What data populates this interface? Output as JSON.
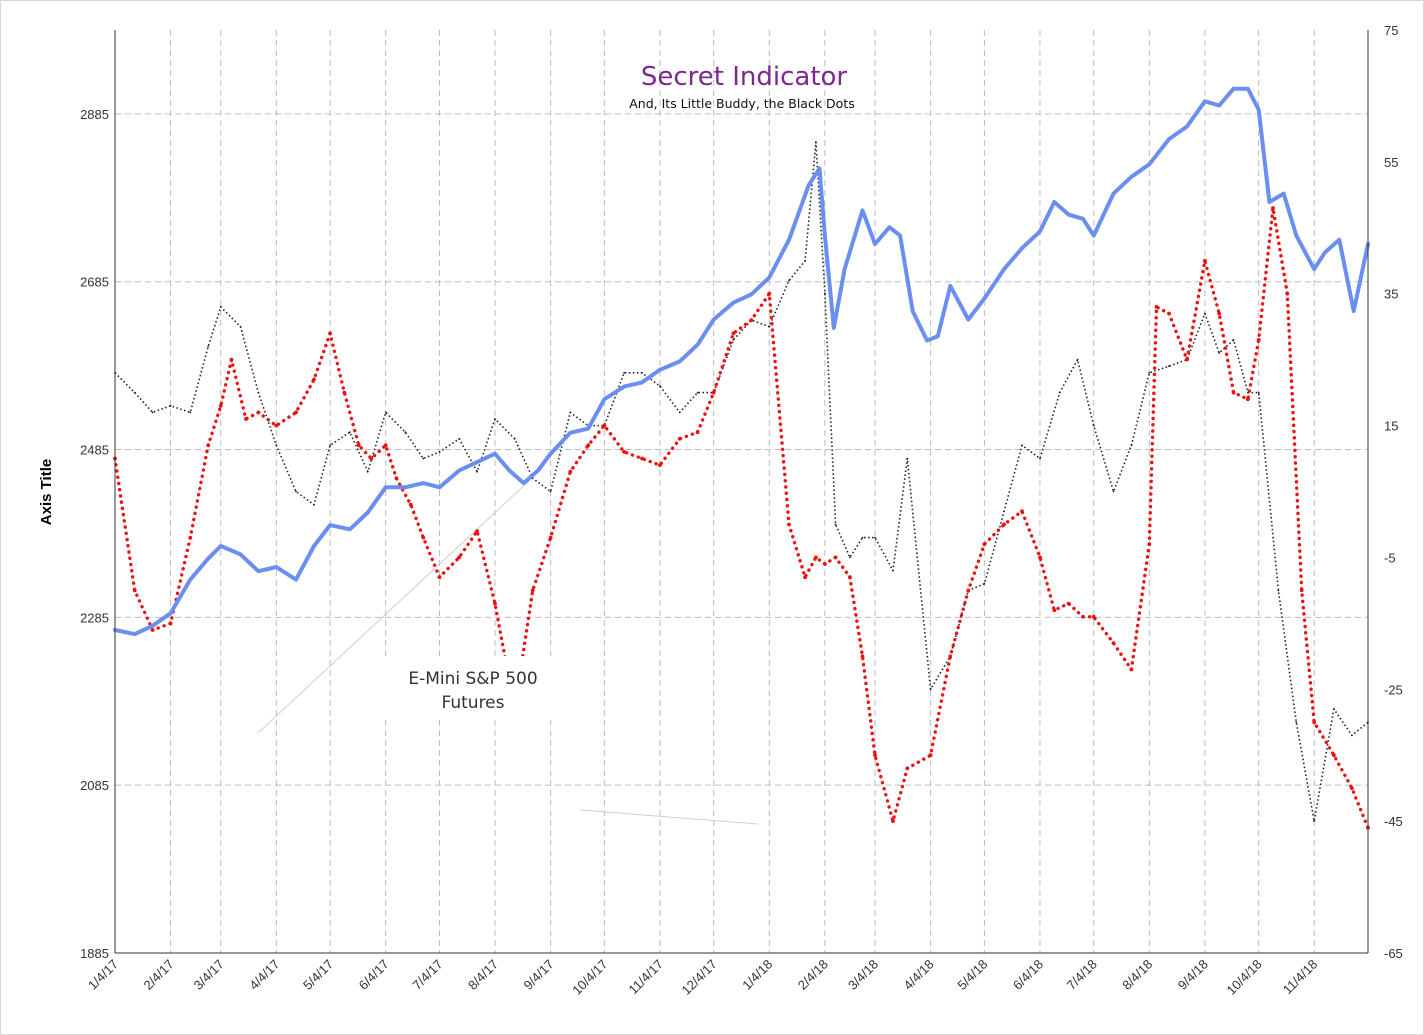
{
  "chart_data": {
    "type": "line",
    "title": "Secret Indicator",
    "subtitle": "And, Its Little Buddy, the Black Dots",
    "ylabel": "Axis Title",
    "annotation": "E-Mini S&P 500 Futures",
    "annotation_lines": [
      "E-Mini S&P 500",
      "Futures"
    ],
    "grid": true,
    "x_range": [
      "2017-01-04",
      "2018-12-04"
    ],
    "x_tick_labels": [
      "1/4/17",
      "2/4/17",
      "3/4/17",
      "4/4/17",
      "5/4/17",
      "6/4/17",
      "7/4/17",
      "8/4/17",
      "9/4/17",
      "10/4/17",
      "11/4/17",
      "12/4/17",
      "1/4/18",
      "2/4/18",
      "3/4/18",
      "4/4/18",
      "5/4/18",
      "6/4/18",
      "7/4/18",
      "8/4/18",
      "9/4/18",
      "10/4/18",
      "11/4/18"
    ],
    "y_left": {
      "ylim": [
        1885,
        2985
      ],
      "ticks": [
        "2885",
        "2685",
        "2485",
        "2285",
        "2085",
        "1885"
      ]
    },
    "y_right": {
      "ylim": [
        -65,
        75
      ],
      "ticks": [
        "75",
        "55",
        "35",
        "15",
        "-5",
        "-25",
        "-45",
        "-65"
      ]
    },
    "colors": {
      "blue": "#6a8ff0",
      "red": "#ee1111",
      "black": "#222222",
      "grid": "#bdbdbd"
    },
    "series": [
      {
        "style": "blue-thick-line",
        "axis": "left",
        "x": [
          "2017-01-04",
          "2017-01-15",
          "2017-01-25",
          "2017-02-04",
          "2017-02-15",
          "2017-02-25",
          "2017-03-04",
          "2017-03-15",
          "2017-03-25",
          "2017-04-04",
          "2017-04-15",
          "2017-04-25",
          "2017-05-04",
          "2017-05-15",
          "2017-05-25",
          "2017-06-04",
          "2017-06-15",
          "2017-06-25",
          "2017-07-04",
          "2017-07-15",
          "2017-07-25",
          "2017-08-04",
          "2017-08-12",
          "2017-08-20",
          "2017-08-28",
          "2017-09-04",
          "2017-09-15",
          "2017-09-25",
          "2017-10-04",
          "2017-10-15",
          "2017-10-25",
          "2017-11-04",
          "2017-11-15",
          "2017-11-25",
          "2017-12-04",
          "2017-12-15",
          "2017-12-25",
          "2018-01-04",
          "2018-01-15",
          "2018-01-26",
          "2018-02-01",
          "2018-02-04",
          "2018-02-09",
          "2018-02-15",
          "2018-02-25",
          "2018-03-04",
          "2018-03-12",
          "2018-03-18",
          "2018-03-25",
          "2018-04-02",
          "2018-04-08",
          "2018-04-15",
          "2018-04-25",
          "2018-05-04",
          "2018-05-15",
          "2018-05-25",
          "2018-06-04",
          "2018-06-12",
          "2018-06-20",
          "2018-06-28",
          "2018-07-04",
          "2018-07-15",
          "2018-07-25",
          "2018-08-04",
          "2018-08-15",
          "2018-08-25",
          "2018-09-04",
          "2018-09-12",
          "2018-09-20",
          "2018-09-28",
          "2018-10-04",
          "2018-10-10",
          "2018-10-18",
          "2018-10-25",
          "2018-11-04",
          "2018-11-10",
          "2018-11-18",
          "2018-11-26",
          "2018-12-04"
        ],
        "y": [
          2270,
          2265,
          2275,
          2290,
          2330,
          2355,
          2370,
          2360,
          2340,
          2345,
          2330,
          2370,
          2395,
          2390,
          2410,
          2440,
          2440,
          2445,
          2440,
          2460,
          2470,
          2480,
          2460,
          2445,
          2460,
          2480,
          2505,
          2510,
          2545,
          2560,
          2565,
          2580,
          2590,
          2610,
          2640,
          2660,
          2670,
          2690,
          2735,
          2800,
          2820,
          2740,
          2630,
          2700,
          2770,
          2730,
          2750,
          2740,
          2650,
          2615,
          2620,
          2680,
          2640,
          2665,
          2700,
          2725,
          2745,
          2780,
          2765,
          2760,
          2740,
          2790,
          2810,
          2825,
          2855,
          2870,
          2900,
          2895,
          2915,
          2915,
          2890,
          2780,
          2790,
          2740,
          2700,
          2720,
          2735,
          2650,
          2730
        ]
      },
      {
        "style": "red-dots",
        "axis": "right",
        "x": [
          "2017-01-04",
          "2017-01-15",
          "2017-01-25",
          "2017-02-04",
          "2017-02-15",
          "2017-02-25",
          "2017-03-04",
          "2017-03-10",
          "2017-03-18",
          "2017-03-25",
          "2017-04-04",
          "2017-04-15",
          "2017-04-25",
          "2017-05-04",
          "2017-05-12",
          "2017-05-20",
          "2017-05-27",
          "2017-06-04",
          "2017-06-10",
          "2017-06-18",
          "2017-06-25",
          "2017-07-04",
          "2017-07-15",
          "2017-07-25",
          "2017-08-04",
          "2017-08-15",
          "2017-08-25",
          "2017-09-04",
          "2017-09-15",
          "2017-09-25",
          "2017-10-04",
          "2017-10-15",
          "2017-10-25",
          "2017-11-04",
          "2017-11-15",
          "2017-11-25",
          "2017-12-04",
          "2017-12-15",
          "2017-12-25",
          "2018-01-04",
          "2018-01-15",
          "2018-01-24",
          "2018-01-30",
          "2018-02-04",
          "2018-02-10",
          "2018-02-18",
          "2018-02-25",
          "2018-03-04",
          "2018-03-14",
          "2018-03-22",
          "2018-04-04",
          "2018-04-15",
          "2018-04-25",
          "2018-05-04",
          "2018-05-15",
          "2018-05-25",
          "2018-06-04",
          "2018-06-12",
          "2018-06-20",
          "2018-06-28",
          "2018-07-04",
          "2018-07-15",
          "2018-07-25",
          "2018-08-04",
          "2018-08-08",
          "2018-08-15",
          "2018-08-25",
          "2018-09-04",
          "2018-09-12",
          "2018-09-20",
          "2018-09-28",
          "2018-10-04",
          "2018-10-12",
          "2018-10-20",
          "2018-10-28",
          "2018-11-04",
          "2018-11-15",
          "2018-11-25",
          "2018-12-04"
        ],
        "y": [
          10,
          -10,
          -16,
          -15,
          -2,
          12,
          18,
          25,
          16,
          17,
          15,
          17,
          22,
          29,
          20,
          12,
          10,
          12,
          7,
          3,
          -2,
          -8,
          -5,
          -1,
          -12,
          -28,
          -10,
          -2,
          8,
          12,
          15,
          11,
          10,
          9,
          13,
          14,
          20,
          29,
          31,
          35,
          0,
          -8,
          -5,
          -6,
          -5,
          -8,
          -20,
          -35,
          -45,
          -37,
          -35,
          -20,
          -10,
          -3,
          0,
          2,
          -5,
          -13,
          -12,
          -14,
          -14,
          -18,
          -22,
          -3,
          33,
          32,
          25,
          40,
          32,
          20,
          19,
          28,
          48,
          35,
          -10,
          -30,
          -35,
          -40,
          -46
        ]
      },
      {
        "style": "black-dotted-line",
        "axis": "right",
        "x": [
          "2017-01-04",
          "2017-01-15",
          "2017-01-25",
          "2017-02-04",
          "2017-02-15",
          "2017-02-25",
          "2017-03-04",
          "2017-03-15",
          "2017-03-25",
          "2017-04-04",
          "2017-04-15",
          "2017-04-25",
          "2017-05-04",
          "2017-05-15",
          "2017-05-25",
          "2017-06-04",
          "2017-06-15",
          "2017-06-25",
          "2017-07-04",
          "2017-07-15",
          "2017-07-25",
          "2017-08-04",
          "2017-08-15",
          "2017-08-25",
          "2017-09-04",
          "2017-09-15",
          "2017-09-25",
          "2017-10-04",
          "2017-10-15",
          "2017-10-25",
          "2017-11-04",
          "2017-11-15",
          "2017-11-25",
          "2017-12-04",
          "2017-12-15",
          "2017-12-25",
          "2018-01-04",
          "2018-01-15",
          "2018-01-24",
          "2018-01-30",
          "2018-02-04",
          "2018-02-10",
          "2018-02-18",
          "2018-02-25",
          "2018-03-04",
          "2018-03-14",
          "2018-03-22",
          "2018-04-04",
          "2018-04-15",
          "2018-04-25",
          "2018-05-04",
          "2018-05-15",
          "2018-05-25",
          "2018-06-04",
          "2018-06-15",
          "2018-06-25",
          "2018-07-04",
          "2018-07-15",
          "2018-07-25",
          "2018-08-04",
          "2018-08-15",
          "2018-08-25",
          "2018-09-04",
          "2018-09-12",
          "2018-09-20",
          "2018-09-28",
          "2018-10-04",
          "2018-10-15",
          "2018-10-25",
          "2018-11-04",
          "2018-11-15",
          "2018-11-25",
          "2018-12-04"
        ],
        "y": [
          23,
          20,
          17,
          18,
          17,
          27,
          33,
          30,
          20,
          12,
          5,
          3,
          12,
          14,
          8,
          17,
          14,
          10,
          11,
          13,
          8,
          16,
          13,
          7,
          5,
          17,
          15,
          15,
          23,
          23,
          21,
          17,
          20,
          20,
          28,
          31,
          30,
          37,
          40,
          58,
          35,
          0,
          -5,
          -2,
          -2,
          -7,
          10,
          -25,
          -20,
          -10,
          -9,
          2,
          12,
          10,
          20,
          25,
          15,
          5,
          12,
          23,
          24,
          25,
          32,
          26,
          28,
          20,
          20,
          -10,
          -30,
          -45,
          -28,
          -32,
          -30
        ]
      }
    ]
  }
}
